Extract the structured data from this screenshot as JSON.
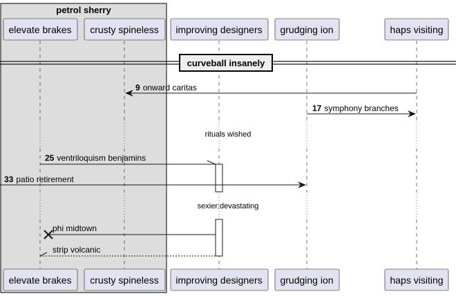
{
  "group": {
    "title": "petrol sherry"
  },
  "participants": [
    {
      "id": "p1",
      "label": "elevate brakes"
    },
    {
      "id": "p2",
      "label": "crusty spineless"
    },
    {
      "id": "p3",
      "label": "improving designers"
    },
    {
      "id": "p4",
      "label": "grudging ion"
    },
    {
      "id": "p5",
      "label": "haps visiting"
    }
  ],
  "divider": {
    "label": "curveball insanely"
  },
  "messages": [
    {
      "num": "9",
      "text": "onward caritas",
      "from": "haps visiting",
      "to": "crusty spineless",
      "style": "solid"
    },
    {
      "num": "17",
      "text": "symphony branches",
      "from": "grudging ion",
      "to": "haps visiting",
      "style": "solid"
    },
    {
      "num": "25",
      "text": "ventriloquism benjamins",
      "from": "elevate brakes",
      "to": "improving designers",
      "style": "solid"
    },
    {
      "num": "33",
      "text": "patio retirement",
      "from": "(external)",
      "to": "grudging ion",
      "style": "solid"
    },
    {
      "num": "",
      "text": "phi midtown",
      "from": "improving designers",
      "to": "elevate brakes",
      "style": "destroy"
    },
    {
      "num": "",
      "text": "strip volcanic",
      "from": "improving designers",
      "to": "elevate brakes",
      "style": "dashed-return"
    }
  ],
  "delays": [
    {
      "text": "rituals wished"
    },
    {
      "text": "sexier:devastating"
    }
  ]
}
